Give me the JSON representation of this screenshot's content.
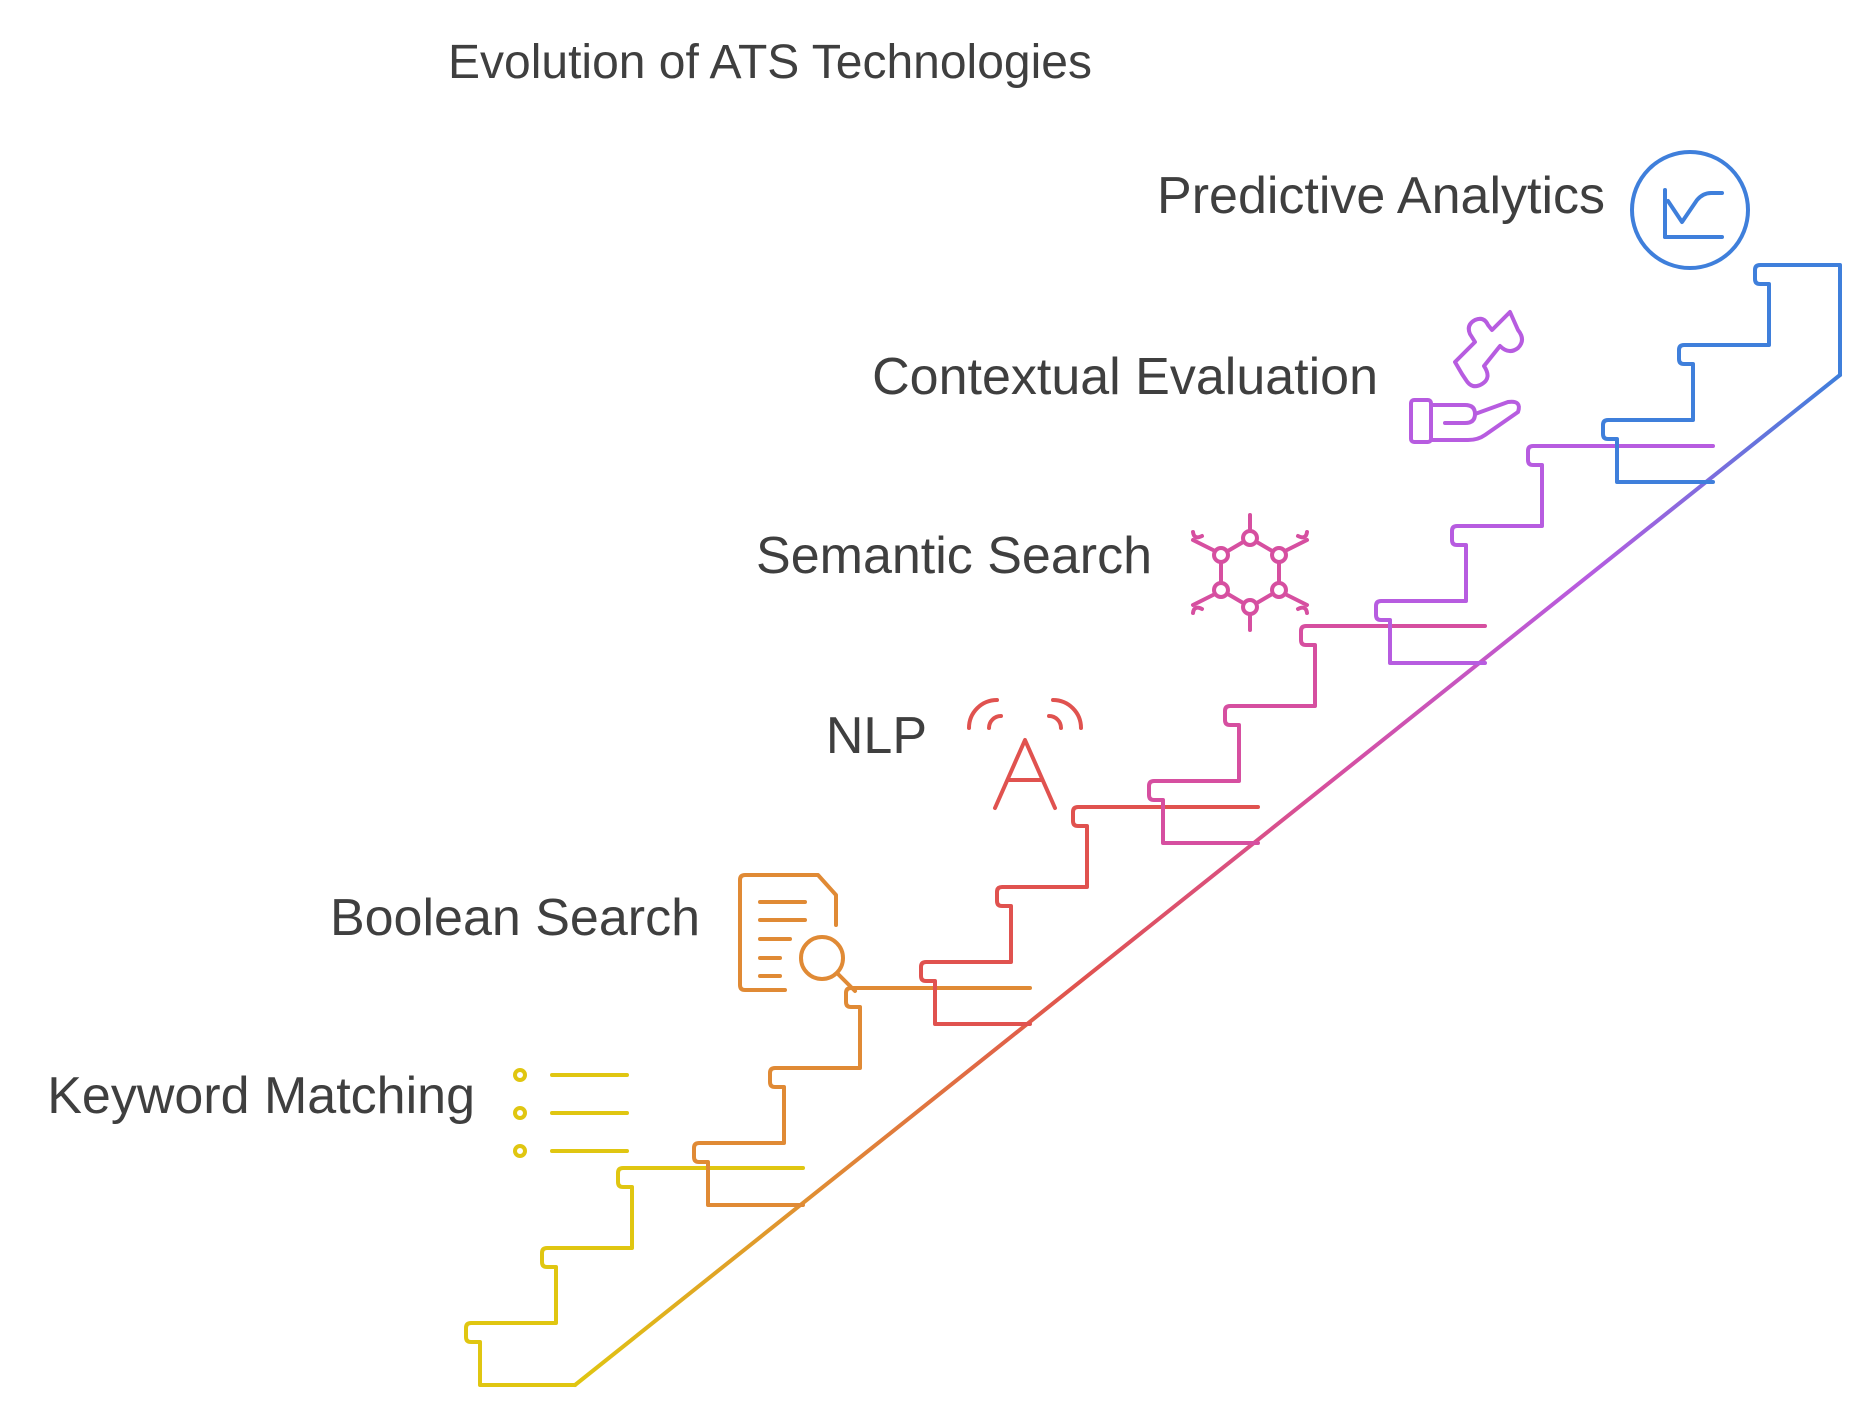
{
  "title": "Evolution of ATS Technologies",
  "stages": [
    {
      "label": "Keyword Matching",
      "icon": "list-icon",
      "color": "#E0C611"
    },
    {
      "label": "Boolean Search",
      "icon": "document-search-icon",
      "color": "#E08A35"
    },
    {
      "label": "NLP",
      "icon": "broadcast-a-icon",
      "color": "#E0524F"
    },
    {
      "label": "Semantic Search",
      "icon": "molecule-icon",
      "color": "#D64FA0"
    },
    {
      "label": "Contextual Evaluation",
      "icon": "hand-puzzle-icon",
      "color": "#B75CE0"
    },
    {
      "label": "Predictive Analytics",
      "icon": "line-chart-icon",
      "color": "#3F7FDB"
    }
  ]
}
